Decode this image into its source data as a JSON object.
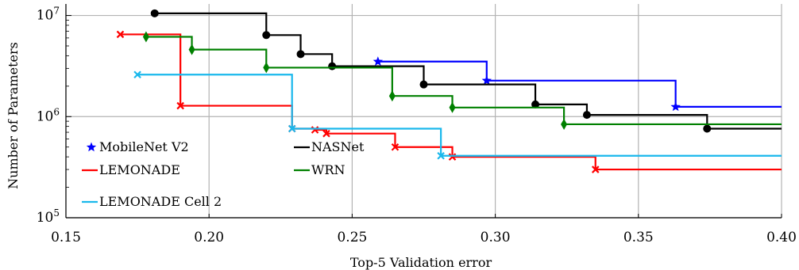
{
  "chart_data": {
    "type": "line",
    "title": "",
    "xlabel": "Top-5 Validation error",
    "ylabel": "Number of Parameters",
    "xlim": [
      0.15,
      0.4
    ],
    "ylim": [
      100000,
      13000000
    ],
    "yscale": "log",
    "grid": true,
    "legend": "bottom-left",
    "x_ticks": [
      0.15,
      0.2,
      0.25,
      0.3,
      0.35,
      0.4
    ],
    "x_tick_labels": [
      "0.15",
      "0.20",
      "0.25",
      "0.30",
      "0.35",
      "0.40"
    ],
    "y_ticks": [
      {
        "value": 10000000,
        "base": "10",
        "exp": "7"
      },
      {
        "value": 1000000,
        "base": "10",
        "exp": "6"
      },
      {
        "value": 100000,
        "base": "10",
        "exp": "5"
      }
    ],
    "series": [
      {
        "name": "MobileNet V2",
        "color": "#0000ff",
        "marker": "star",
        "x": [
          0.259,
          0.297,
          0.363
        ],
        "y": [
          3500000,
          2270000,
          1250000
        ]
      },
      {
        "name": "NASNet",
        "color": "#000000",
        "marker": "circle",
        "x": [
          0.181,
          0.22,
          0.232,
          0.243,
          0.275,
          0.314,
          0.332,
          0.374
        ],
        "y": [
          10500000,
          6400000,
          4150000,
          3150000,
          2080000,
          1320000,
          1040000,
          760000
        ]
      },
      {
        "name": "LEMONADE",
        "color": "#ff0000",
        "marker": "x",
        "x": [
          0.169,
          0.19,
          0.229,
          0.237,
          0.241,
          0.265,
          0.285,
          0.335
        ],
        "y": [
          6500000,
          1280000,
          760000,
          740000,
          680000,
          500000,
          400000,
          300000
        ]
      },
      {
        "name": "WRN",
        "color": "#008000",
        "marker": "diamond",
        "x": [
          0.178,
          0.194,
          0.22,
          0.264,
          0.285,
          0.324
        ],
        "y": [
          6150000,
          4600000,
          3050000,
          1600000,
          1230000,
          840000
        ]
      },
      {
        "name": "LEMONADE Cell 2",
        "color": "#1ab8ec",
        "marker": "x",
        "x": [
          0.175,
          0.229,
          0.281
        ],
        "y": [
          2600000,
          760000,
          410000
        ]
      }
    ],
    "legend_order": [
      [
        "MobileNet V2",
        "NASNet"
      ],
      [
        "LEMONADE",
        "WRN"
      ],
      [
        "LEMONADE Cell 2"
      ]
    ]
  }
}
